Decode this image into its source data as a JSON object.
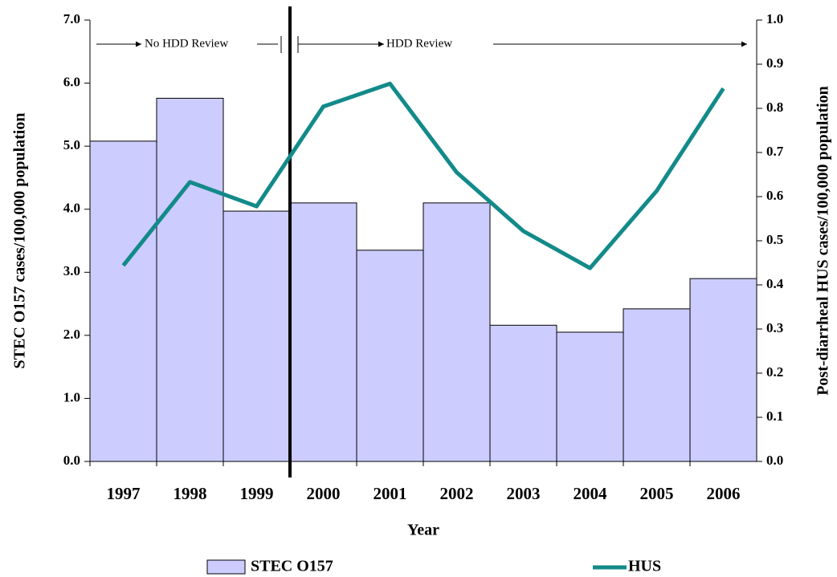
{
  "chart_data": {
    "type": "bar_line",
    "categories": [
      "1997",
      "1998",
      "1999",
      "2000",
      "2001",
      "2002",
      "2003",
      "2004",
      "2005",
      "2006"
    ],
    "series": [
      {
        "name": "STEC O157",
        "type": "bar",
        "color": "#ccccff",
        "values": [
          5.08,
          5.76,
          3.97,
          4.1,
          3.35,
          4.1,
          2.16,
          2.05,
          2.42,
          2.9
        ]
      },
      {
        "name": "HUS",
        "type": "line",
        "axis": "y2",
        "color": "#138a8a",
        "values": [
          0.444,
          0.633,
          0.578,
          0.804,
          0.856,
          0.655,
          0.522,
          0.438,
          0.613,
          0.845
        ]
      }
    ],
    "x_label": "Year",
    "y_label": "STEC O157 cases/100,000 population",
    "y2_label": "Post-diarrheal HUS cases/100,000 population",
    "ylim": [
      0,
      7
    ],
    "yticks": [
      {
        "value": 0,
        "label": "0.0"
      },
      {
        "value": 1,
        "label": "1.0"
      },
      {
        "value": 2,
        "label": "2.0"
      },
      {
        "value": 3,
        "label": "3.0"
      },
      {
        "value": 4,
        "label": "4.0"
      },
      {
        "value": 5,
        "label": "5.0"
      },
      {
        "value": 6,
        "label": "6.0"
      },
      {
        "value": 7,
        "label": "7.0"
      }
    ],
    "y2lim": [
      0,
      1
    ],
    "y2ticks": [
      {
        "value": 0,
        "label": "0.0"
      },
      0.1,
      0.2,
      0.3,
      0.4,
      0.5,
      0.6,
      0.7,
      0.8,
      0.9,
      {
        "value": 1,
        "label": "1.0"
      }
    ],
    "annotations": [
      "No HDD Review",
      "HDD Review"
    ]
  }
}
